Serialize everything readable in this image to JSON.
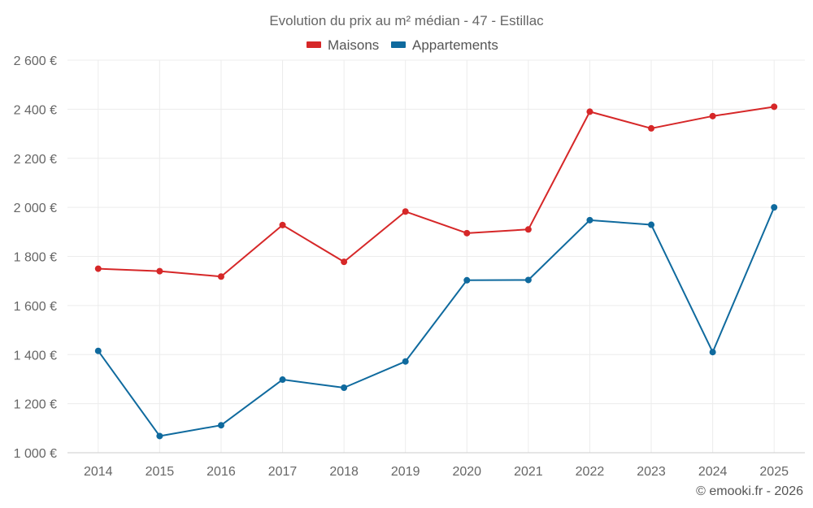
{
  "chart_data": {
    "type": "line",
    "title": "Evolution du prix au m² médian - 47 - Estillac",
    "categories": [
      "2014",
      "2015",
      "2016",
      "2017",
      "2018",
      "2019",
      "2020",
      "2021",
      "2022",
      "2023",
      "2024",
      "2025"
    ],
    "series": [
      {
        "name": "Maisons",
        "color": "#d62728",
        "values": [
          1750,
          1740,
          1718,
          1928,
          1778,
          1983,
          1895,
          1910,
          2390,
          2322,
          2372,
          2410
        ]
      },
      {
        "name": "Appartements",
        "color": "#0f6a9e",
        "values": [
          1415,
          1068,
          1112,
          1298,
          1265,
          1372,
          1703,
          1704,
          1948,
          1929,
          1410,
          2000
        ]
      }
    ],
    "ylim": [
      1000,
      2600
    ],
    "yticks": [
      1000,
      1200,
      1400,
      1600,
      1800,
      2000,
      2200,
      2400,
      2600
    ],
    "ytick_labels": [
      "1 000 €",
      "1 200 €",
      "1 400 €",
      "1 600 €",
      "1 800 €",
      "2 000 €",
      "2 200 €",
      "2 400 €",
      "2 600 €"
    ],
    "xlabel": "",
    "ylabel": "",
    "grid": true,
    "legend_position": "top-center"
  },
  "credit": "© emooki.fr - 2026"
}
